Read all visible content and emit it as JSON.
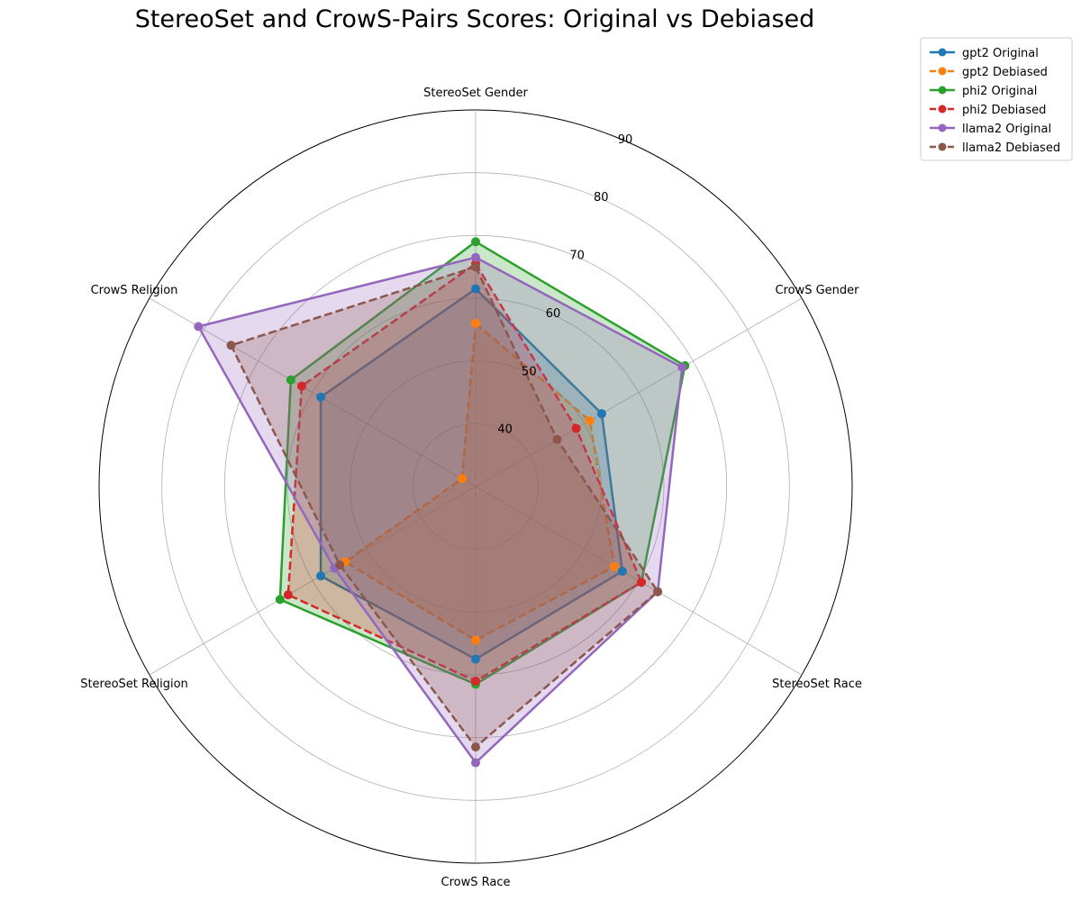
{
  "chart_data": {
    "type": "radar",
    "title": "StereoSet and CrowS-Pairs Scores: Original vs Debiased",
    "categories": [
      "StereoSet Gender",
      "CrowS Gender",
      "StereoSet Race",
      "CrowS Race",
      "StereoSet Religion",
      "CrowS Religion"
    ],
    "r_ticks": [
      40,
      50,
      60,
      70,
      80,
      90
    ],
    "rlim": [
      30,
      90
    ],
    "grid": true,
    "legend_position": "upper-right-outside",
    "series": [
      {
        "name": "gpt2 Original",
        "color": "#1f77b4",
        "linestyle": "solid",
        "values": [
          61.5,
          53.2,
          57.0,
          57.5,
          58.5,
          58.5
        ]
      },
      {
        "name": "gpt2 Debiased",
        "color": "#ff7f0e",
        "linestyle": "dashed",
        "values": [
          56.0,
          51.0,
          55.5,
          54.5,
          54.0,
          32.5
        ]
      },
      {
        "name": "phi2 Original",
        "color": "#2ca02c",
        "linestyle": "solid",
        "values": [
          69.0,
          68.5,
          60.5,
          61.5,
          66.0,
          64.0
        ]
      },
      {
        "name": "phi2 Debiased",
        "color": "#d62728",
        "linestyle": "dashed",
        "values": [
          65.5,
          48.5,
          60.5,
          61.0,
          64.5,
          62.0
        ]
      },
      {
        "name": "llama2 Original",
        "color": "#9467bd",
        "linestyle": "solid",
        "values": [
          66.5,
          68.0,
          63.5,
          74.0,
          56.0,
          81.0
        ]
      },
      {
        "name": "llama2 Debiased",
        "color": "#8c564b",
        "linestyle": "dashed",
        "values": [
          65.0,
          45.0,
          63.5,
          71.5,
          55.0,
          75.0
        ]
      }
    ]
  }
}
